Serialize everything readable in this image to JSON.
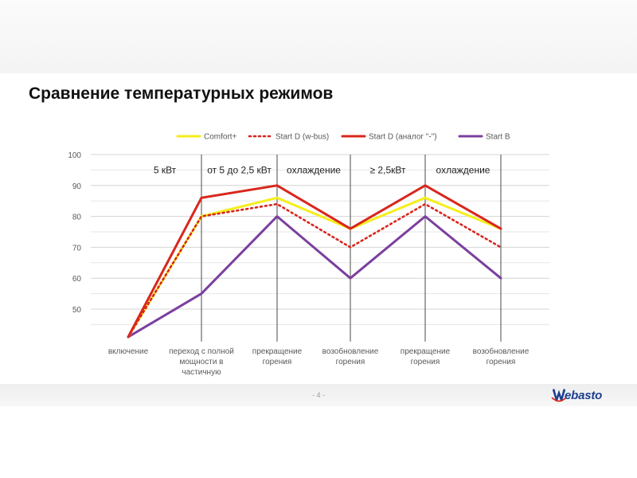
{
  "slide": {
    "title": "Сравнение температурных режимов",
    "page_number": "- 4 -",
    "logo_text": "ebasto"
  },
  "chart_data": {
    "type": "line",
    "title": "",
    "xlabel": "",
    "ylabel": "",
    "ylim": [
      40,
      100
    ],
    "yticks": [
      50,
      60,
      70,
      80,
      90,
      100
    ],
    "grid": true,
    "legend_position": "top",
    "categories": [
      [
        "включение"
      ],
      [
        "переход с полной",
        "мощности в",
        "частичную"
      ],
      [
        "прекращение",
        "горения"
      ],
      [
        "возобновление",
        "горения"
      ],
      [
        "прекращение",
        "горения"
      ],
      [
        "возобновление",
        "горения"
      ]
    ],
    "phases": [
      "5 кВт",
      "от 5 до 2,5 кВт",
      "охлаждение",
      "≥ 2,5кВт",
      "охлаждение"
    ],
    "series": [
      {
        "name": "Comfort+",
        "color": "#f5ee1a",
        "dash": "solid",
        "values": [
          41,
          80,
          86,
          76,
          86,
          76
        ]
      },
      {
        "name": "Start D (w-bus)",
        "color": "#d9261c",
        "dash": "dotted",
        "values": [
          41,
          80,
          84,
          70,
          84,
          70
        ]
      },
      {
        "name": "Start D (аналог \"-\")",
        "color": "#d9261c",
        "dash": "solid",
        "values": [
          41,
          86,
          90,
          76,
          90,
          76
        ]
      },
      {
        "name": "Start B",
        "color": "#7b3f9e",
        "dash": "solid",
        "values": [
          41,
          55,
          80,
          60,
          80,
          60
        ]
      }
    ]
  }
}
